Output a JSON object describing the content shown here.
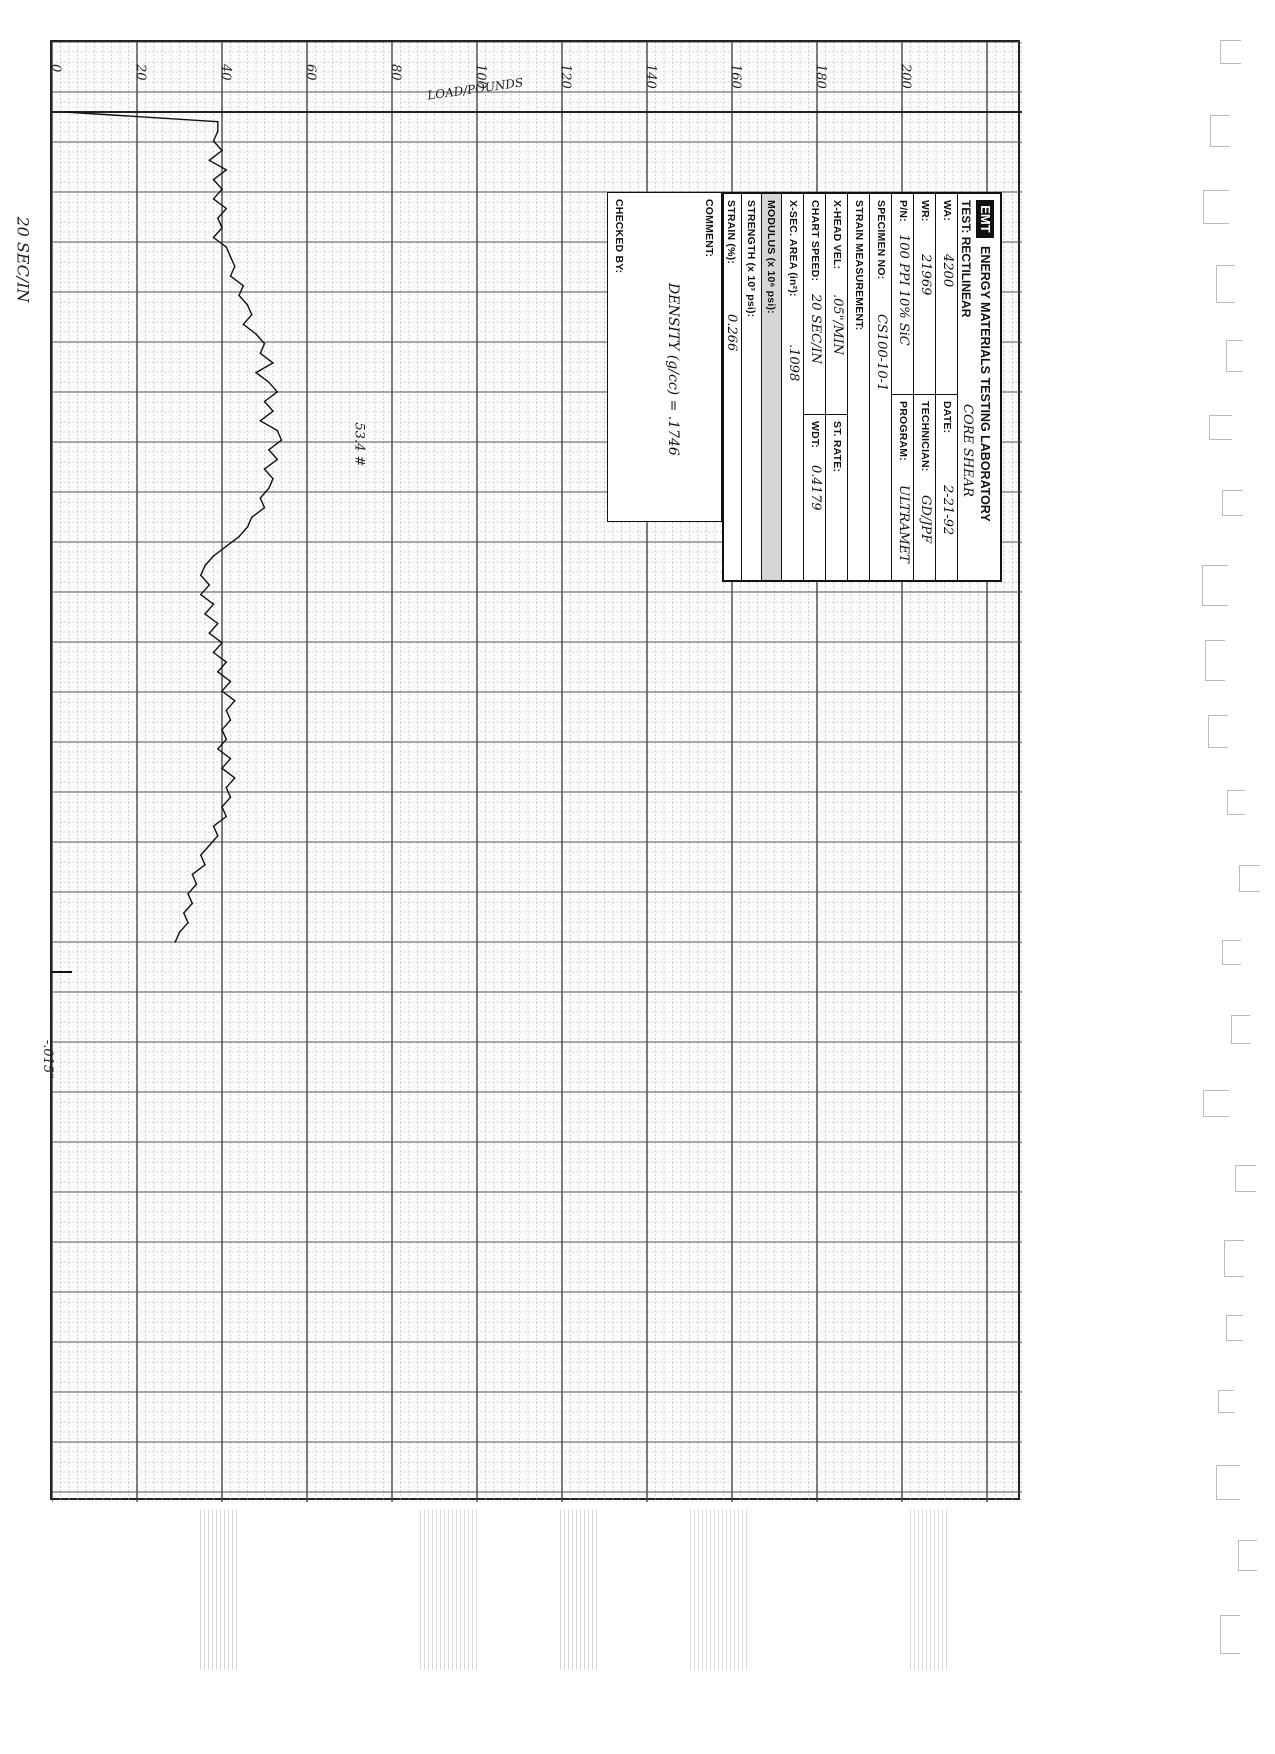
{
  "chart_data": {
    "type": "line",
    "title": "",
    "xlabel": "20 SEC/IN",
    "ylabel": "LOAD/POUNDS",
    "x_axis_marker": "-.015\"",
    "load_scale_labels": [
      "0",
      "20",
      "40",
      "60",
      "80",
      "100",
      "120",
      "140",
      "160",
      "180",
      "200"
    ],
    "ylim": [
      0,
      200
    ],
    "peak_annotation": "53.4 #",
    "grid": true,
    "series": [
      {
        "values": [
          3,
          39,
          39,
          38,
          40,
          37,
          41,
          38,
          40,
          38,
          41,
          39,
          40,
          38,
          41,
          42,
          43,
          42,
          45,
          44,
          46,
          47,
          45,
          48,
          50,
          49,
          52,
          48,
          51,
          53,
          50,
          52,
          49,
          53,
          54,
          51,
          53,
          50,
          52,
          51,
          49,
          50,
          47,
          46,
          44,
          41,
          38,
          36,
          35,
          37,
          35,
          38,
          36,
          39,
          37,
          40,
          38,
          41,
          39,
          42,
          40,
          43,
          41,
          42,
          40,
          41,
          39,
          42,
          40,
          43,
          41,
          42,
          40,
          41,
          38,
          39,
          37,
          35,
          36,
          33,
          34,
          32,
          33,
          31,
          32,
          30,
          29
        ]
      }
    ]
  },
  "panel": {
    "logo": "EMT",
    "lab": "ENERGY MATERIALS TESTING LABORATORY",
    "test_label": "TEST:",
    "test_value": "RECTILINEAR",
    "test_type": "CORE SHEAR",
    "wa_label": "WA:",
    "wa": "4200",
    "date_label": "DATE:",
    "date": "2-21-92",
    "wr_label": "WR:",
    "wr": "21969",
    "technician_label": "TECHNICIAN:",
    "technician": "GD/JPF",
    "pn_label": "P/N:",
    "pn": "100 PPI 10% SiC",
    "program_label": "PROGRAM:",
    "program": "ULTRAMET",
    "specimen_label": "SPECIMEN NO:",
    "specimen": "CS100-10-1",
    "strain_meas_label": "STRAIN MEASUREMENT:",
    "xhead_label": "X-HEAD VEL:",
    "xhead": ".05\"/MIN",
    "strate_label": "ST. RATE:",
    "chart_speed_label": "CHART SPEED:",
    "chart_speed": "20 SEC/IN",
    "wdt_label": "WDT:",
    "wdt": "0.4179",
    "xsec_label": "X-SEC. AREA (in²):",
    "xsec": ".1098",
    "modulus_label": "MODULUS (x 10⁶ psi):",
    "strength_label": "STRENGTH (x 10³ psi):",
    "strain_label": "STRAIN (%):",
    "strain": "0.266",
    "comment_label": "COMMENT:",
    "comment": "DENSITY (g/cc) = .1746",
    "checked_label": "CHECKED BY:"
  }
}
